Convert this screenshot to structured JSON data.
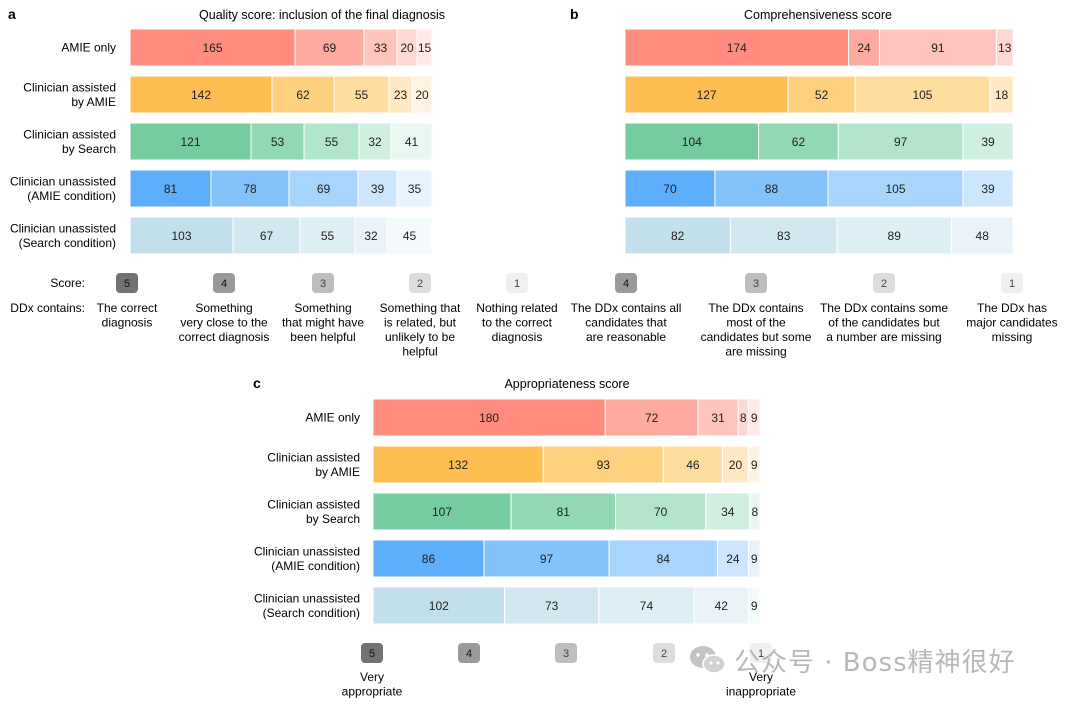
{
  "labels": {
    "score_label": "Score:",
    "ddx_label": "DDx contains:"
  },
  "colors": {
    "red": [
      "#ff8c7e",
      "#ffaa9f",
      "#ffc4bb",
      "#ffd8d2",
      "#ffeae7"
    ],
    "orange": [
      "#ffbe52",
      "#ffd17e",
      "#ffdd9f",
      "#ffe9c2",
      "#fff3e2"
    ],
    "green": [
      "#74cc9f",
      "#91d8b3",
      "#b3e5cb",
      "#d1efdf",
      "#ebf8f1"
    ],
    "blue": [
      "#5daefb",
      "#84c2fc",
      "#a9d4fd",
      "#cbe6fd",
      "#e7f3fe"
    ],
    "teal": [
      "#c1e0ec",
      "#d1e8f1",
      "#deeff5",
      "#eaf4f8",
      "#f4f9fb"
    ],
    "badges": [
      "#727272",
      "#9a9a9a",
      "#bebebe",
      "#dddddd",
      "#f0f0f0"
    ]
  },
  "chart_data": [
    {
      "id": "a",
      "panel_label": "a",
      "type": "bar",
      "stacked": "horizontal",
      "title": "Quality score: inclusion of the final diagnosis",
      "categories": [
        "AMIE only",
        "Clinician assisted by AMIE",
        "Clinician assisted by Search",
        "Clinician unassisted (AMIE condition)",
        "Clinician unassisted (Search condition)"
      ],
      "category_lines": [
        [
          "AMIE only"
        ],
        [
          "Clinician assisted",
          "by AMIE"
        ],
        [
          "Clinician assisted",
          "by Search"
        ],
        [
          "Clinician unassisted",
          "(AMIE condition)"
        ],
        [
          "Clinician unassisted",
          "(Search condition)"
        ]
      ],
      "palettes": [
        "red",
        "orange",
        "green",
        "blue",
        "teal"
      ],
      "series": [
        {
          "score": "5",
          "values": [
            165,
            142,
            121,
            81,
            103
          ]
        },
        {
          "score": "4",
          "values": [
            69,
            62,
            53,
            78,
            67
          ]
        },
        {
          "score": "3",
          "values": [
            33,
            55,
            55,
            69,
            55
          ]
        },
        {
          "score": "2",
          "values": [
            20,
            23,
            32,
            39,
            32
          ]
        },
        {
          "score": "1",
          "values": [
            15,
            20,
            41,
            35,
            45
          ]
        }
      ],
      "legend": [
        {
          "score": "5",
          "lines": [
            "The correct",
            "diagnosis"
          ]
        },
        {
          "score": "4",
          "lines": [
            "Something",
            "very close to the",
            "correct diagnosis"
          ]
        },
        {
          "score": "3",
          "lines": [
            "Something",
            "that might have",
            "been helpful"
          ]
        },
        {
          "score": "2",
          "lines": [
            "Something that",
            "is related, but",
            "unlikely to be",
            "helpful"
          ]
        },
        {
          "score": "1",
          "lines": [
            "Nothing related",
            "to the correct",
            "diagnosis"
          ]
        }
      ]
    },
    {
      "id": "b",
      "panel_label": "b",
      "type": "bar",
      "stacked": "horizontal",
      "title": "Comprehensiveness score",
      "categories": [
        "AMIE only",
        "Clinician assisted by AMIE",
        "Clinician assisted by Search",
        "Clinician unassisted (AMIE condition)",
        "Clinician unassisted (Search condition)"
      ],
      "palettes": [
        "red",
        "orange",
        "green",
        "blue",
        "teal"
      ],
      "series": [
        {
          "score": "4",
          "values": [
            174,
            127,
            104,
            70,
            82
          ]
        },
        {
          "score": "3",
          "values": [
            24,
            52,
            62,
            88,
            83
          ]
        },
        {
          "score": "2",
          "values": [
            91,
            105,
            97,
            105,
            89
          ]
        },
        {
          "score": "1",
          "values": [
            13,
            18,
            39,
            39,
            48
          ]
        }
      ],
      "legend": [
        {
          "score": "4",
          "lines": [
            "The DDx contains all",
            "candidates that",
            "are reasonable"
          ]
        },
        {
          "score": "3",
          "lines": [
            "The DDx contains",
            "most of the",
            "candidates but some",
            "are missing"
          ]
        },
        {
          "score": "2",
          "lines": [
            "The DDx contains some",
            "of the candidates but",
            "a number are missing"
          ]
        },
        {
          "score": "1",
          "lines": [
            "The DDx has",
            "major candidates",
            "missing"
          ]
        }
      ]
    },
    {
      "id": "c",
      "panel_label": "c",
      "type": "bar",
      "stacked": "horizontal",
      "title": "Appropriateness score",
      "categories": [
        "AMIE only",
        "Clinician assisted by AMIE",
        "Clinician assisted by Search",
        "Clinician unassisted (AMIE condition)",
        "Clinician unassisted (Search condition)"
      ],
      "category_lines": [
        [
          "AMIE only"
        ],
        [
          "Clinician assisted",
          "by AMIE"
        ],
        [
          "Clinician assisted",
          "by Search"
        ],
        [
          "Clinician unassisted",
          "(AMIE condition)"
        ],
        [
          "Clinician unassisted",
          "(Search condition)"
        ]
      ],
      "palettes": [
        "red",
        "orange",
        "green",
        "blue",
        "teal"
      ],
      "series": [
        {
          "score": "5",
          "values": [
            180,
            132,
            107,
            86,
            102
          ]
        },
        {
          "score": "4",
          "values": [
            72,
            93,
            81,
            97,
            73
          ]
        },
        {
          "score": "3",
          "values": [
            31,
            46,
            70,
            84,
            74
          ]
        },
        {
          "score": "2",
          "values": [
            8,
            20,
            34,
            24,
            42
          ]
        },
        {
          "score": "1",
          "values": [
            9,
            9,
            8,
            9,
            9
          ]
        }
      ],
      "legend": [
        {
          "score": "5",
          "lines": [
            "Very",
            "appropriate"
          ]
        },
        {
          "score": "4",
          "lines": []
        },
        {
          "score": "3",
          "lines": []
        },
        {
          "score": "2",
          "lines": []
        },
        {
          "score": "1",
          "lines": [
            "Very",
            "inappropriate"
          ]
        }
      ]
    }
  ],
  "watermark": "公众号 · Boss精神很好"
}
